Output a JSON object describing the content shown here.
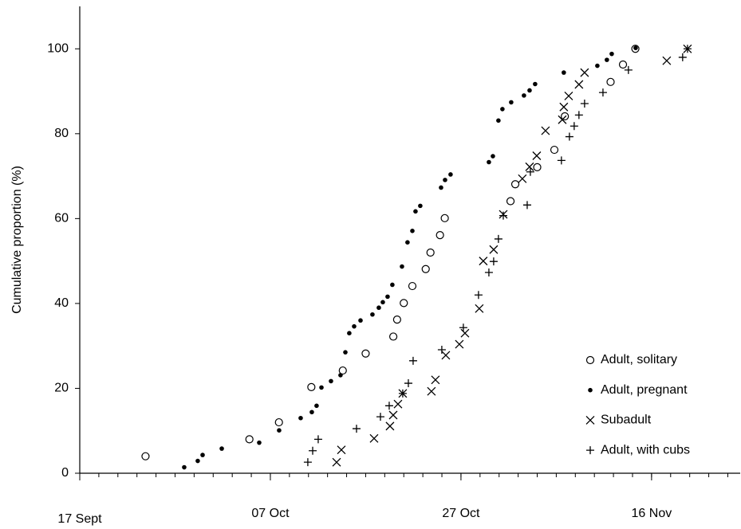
{
  "chart_data": {
    "type": "scatter",
    "ylabel": "Cumulative proportion (%)",
    "xlim": [
      0,
      69.3
    ],
    "ylim": [
      0,
      110
    ],
    "xticks": [
      {
        "value": 0,
        "label": "17 Sept"
      },
      {
        "value": 20,
        "label": "07 Oct"
      },
      {
        "value": 40,
        "label": "27 Oct"
      },
      {
        "value": 60,
        "label": "16 Nov"
      }
    ],
    "x_minor_tick_step": 2,
    "yticks": [
      0,
      20,
      40,
      60,
      80,
      100
    ],
    "legend": "lower right",
    "series": [
      {
        "name": "Adult, solitary",
        "marker": "open-circle",
        "color": "#000000",
        "x": [
          6.9,
          17.8,
          20.9,
          24.3,
          27.6,
          30.0,
          32.9,
          33.3,
          34.0,
          34.9,
          36.3,
          36.8,
          37.8,
          38.3,
          45.2,
          45.7,
          48.0,
          49.8,
          50.9,
          55.7,
          57.0,
          58.3
        ],
        "values": [
          4,
          8,
          12,
          20.3,
          24.2,
          28.2,
          32.2,
          36.2,
          40.1,
          44.1,
          48.1,
          52,
          56.1,
          60.1,
          64.1,
          68.1,
          72.1,
          76.2,
          84.1,
          92.2,
          96.3,
          100
        ]
      },
      {
        "name": "Adult, pregnant",
        "marker": "dot",
        "color": "#000000",
        "x": [
          10.96,
          12.38,
          12.89,
          14.9,
          18.83,
          20.92,
          23.18,
          24.35,
          24.85,
          25.36,
          26.36,
          27.36,
          27.87,
          28.28,
          28.79,
          29.46,
          30.71,
          31.38,
          31.8,
          32.3,
          32.8,
          33.81,
          34.39,
          34.9,
          35.23,
          35.73,
          37.91,
          38.33,
          38.91,
          42.93,
          43.35,
          43.93,
          44.35,
          45.27,
          46.61,
          47.2,
          47.78,
          50.79,
          54.31,
          55.31,
          55.82,
          58.33
        ],
        "values": [
          1.4,
          2.9,
          4.3,
          5.8,
          7.2,
          10.1,
          13.0,
          14.4,
          15.9,
          20.2,
          21.7,
          23.1,
          28.5,
          33.0,
          34.6,
          36.0,
          37.4,
          39.0,
          40.3,
          41.6,
          44.4,
          48.7,
          54.4,
          57.1,
          61.7,
          63.0,
          67.3,
          69.1,
          70.4,
          73.3,
          74.7,
          83.1,
          85.8,
          87.4,
          89.0,
          90.2,
          91.7,
          94.4,
          96.0,
          97.4,
          98.8,
          100.2
        ]
      },
      {
        "name": "Subadult",
        "marker": "x",
        "color": "#000000",
        "x": [
          26.95,
          27.45,
          30.88,
          32.55,
          32.89,
          33.39,
          33.89,
          36.9,
          37.32,
          38.41,
          39.83,
          40.42,
          41.92,
          42.34,
          43.43,
          44.44,
          46.44,
          47.2,
          47.95,
          48.87,
          50.63,
          50.79,
          51.3,
          52.38,
          52.97,
          61.59,
          63.77
        ],
        "values": [
          2.6,
          5.5,
          8.2,
          11.1,
          13.7,
          16.3,
          18.8,
          19.3,
          22.0,
          27.8,
          30.4,
          33.0,
          38.8,
          50.0,
          52.7,
          61.0,
          69.4,
          72.2,
          74.8,
          80.7,
          83.3,
          86.3,
          88.9,
          91.6,
          94.4,
          97.2,
          100
        ]
      },
      {
        "name": "Adult, with cubs",
        "marker": "plus",
        "color": "#000000",
        "x": [
          23.93,
          24.44,
          25.02,
          29.04,
          31.55,
          32.47,
          33.89,
          34.48,
          34.98,
          37.99,
          40.25,
          41.84,
          42.93,
          43.43,
          43.93,
          44.44,
          46.95,
          47.28,
          50.54,
          51.38,
          51.88,
          52.38,
          52.97,
          54.9,
          57.57,
          63.26,
          63.77
        ],
        "values": [
          2.6,
          5.3,
          8.0,
          10.5,
          13.3,
          15.9,
          18.8,
          21.2,
          26.5,
          29.1,
          34.3,
          42.0,
          47.3,
          49.9,
          55.2,
          60.7,
          63.2,
          71.0,
          73.7,
          79.3,
          81.8,
          84.4,
          87.1,
          89.7,
          95.0,
          98.0,
          100
        ]
      }
    ]
  }
}
